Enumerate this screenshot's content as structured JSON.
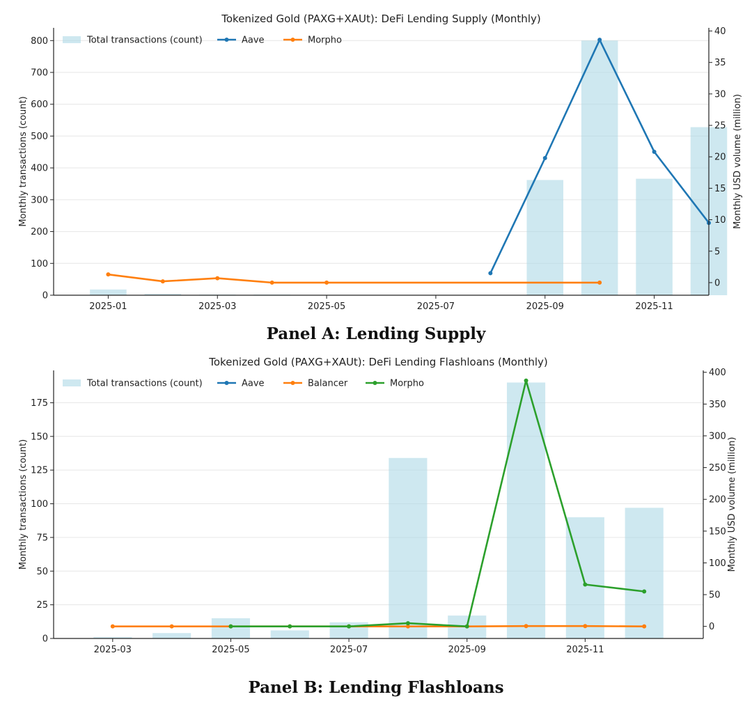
{
  "colors": {
    "bars": "#add8e6",
    "aave": "#1f77b4",
    "orange": "#ff7f0e",
    "green": "#2ca02c",
    "axis": "#222222",
    "grid": "#e6e6e6"
  },
  "panels": [
    {
      "caption": "Panel A: Lending Supply",
      "chart_data": {
        "type": "bar+line",
        "title": "Tokenized Gold (PAXG+XAUt): DeFi Lending Supply (Monthly)",
        "ylabel_left": "Monthly transactions (count)",
        "ylabel_right": "Monthly USD volume (million)",
        "xlim": [
          0,
          12
        ],
        "ylim_left": [
          0,
          840
        ],
        "ylim_right": [
          -2,
          40.5
        ],
        "yticks_left": [
          0,
          100,
          200,
          300,
          400,
          500,
          600,
          700,
          800
        ],
        "yticks_right": [
          0,
          5,
          10,
          15,
          20,
          25,
          30,
          35,
          40
        ],
        "xticks": [
          {
            "pos": 1,
            "label": "2025-01"
          },
          {
            "pos": 3,
            "label": "2025-03"
          },
          {
            "pos": 5,
            "label": "2025-05"
          },
          {
            "pos": 7,
            "label": "2025-07"
          },
          {
            "pos": 9,
            "label": "2025-09"
          },
          {
            "pos": 11,
            "label": "2025-11"
          }
        ],
        "bar_width": 0.67,
        "bars": {
          "name": "Total transactions (count)",
          "x": [
            1,
            2,
            3,
            4,
            5,
            6,
            7,
            8,
            9,
            10,
            11,
            12
          ],
          "values": [
            18,
            4,
            2,
            2,
            1,
            1,
            1,
            1,
            362,
            800,
            366,
            528
          ]
        },
        "series": [
          {
            "name": "Aave",
            "color_key": "aave",
            "x": [
              8,
              9,
              10,
              11,
              12
            ],
            "values": [
              1.5,
              19.8,
              38.6,
              20.8,
              9.5
            ]
          },
          {
            "name": "Morpho",
            "color_key": "orange",
            "x": [
              1,
              2,
              3,
              4,
              5,
              10
            ],
            "values": [
              1.3,
              0.2,
              0.7,
              0.0,
              0.0,
              0.0
            ]
          }
        ],
        "legend": [
          "Total transactions (count)",
          "Aave",
          "Morpho"
        ]
      }
    },
    {
      "caption": "Panel B: Lending Flashloans",
      "chart_data": {
        "type": "bar+line",
        "title": "Tokenized Gold (PAXG+XAUt): DeFi Lending Flashloans (Monthly)",
        "ylabel_left": "Monthly transactions (count)",
        "ylabel_right": "Monthly USD volume (million)",
        "xlim": [
          2.0,
          13.0
        ],
        "ylim_left": [
          0,
          199
        ],
        "ylim_right": [
          -19,
          403
        ],
        "yticks_left": [
          0,
          25,
          50,
          75,
          100,
          125,
          150,
          175
        ],
        "yticks_right": [
          0,
          50,
          100,
          150,
          200,
          250,
          300,
          350,
          400
        ],
        "xticks": [
          {
            "pos": 3,
            "label": "2025-03"
          },
          {
            "pos": 5,
            "label": "2025-05"
          },
          {
            "pos": 7,
            "label": "2025-07"
          },
          {
            "pos": 9,
            "label": "2025-09"
          },
          {
            "pos": 11,
            "label": "2025-11"
          }
        ],
        "bar_width": 0.65,
        "bars": {
          "name": "Total transactions (count)",
          "x": [
            3,
            4,
            5,
            6,
            7,
            8,
            9,
            10,
            11,
            12
          ],
          "values": [
            1,
            4,
            15,
            6,
            12,
            134,
            17,
            190,
            90,
            97
          ]
        },
        "series": [
          {
            "name": "Aave",
            "color_key": "aave",
            "x": [],
            "values": []
          },
          {
            "name": "Balancer",
            "color_key": "orange",
            "x": [
              3,
              4,
              5,
              6,
              7,
              8,
              9,
              10,
              11,
              12
            ],
            "values": [
              0,
              0,
              0,
              0,
              0,
              0,
              0,
              0.5,
              0.5,
              0
            ]
          },
          {
            "name": "Morpho",
            "color_key": "green",
            "x": [
              5,
              6,
              7,
              8,
              9,
              10,
              11,
              12
            ],
            "values": [
              0,
              0,
              0,
              5,
              0,
              387,
              66,
              55
            ]
          }
        ],
        "legend": [
          "Total transactions (count)",
          "Aave",
          "Balancer",
          "Morpho"
        ]
      }
    }
  ]
}
